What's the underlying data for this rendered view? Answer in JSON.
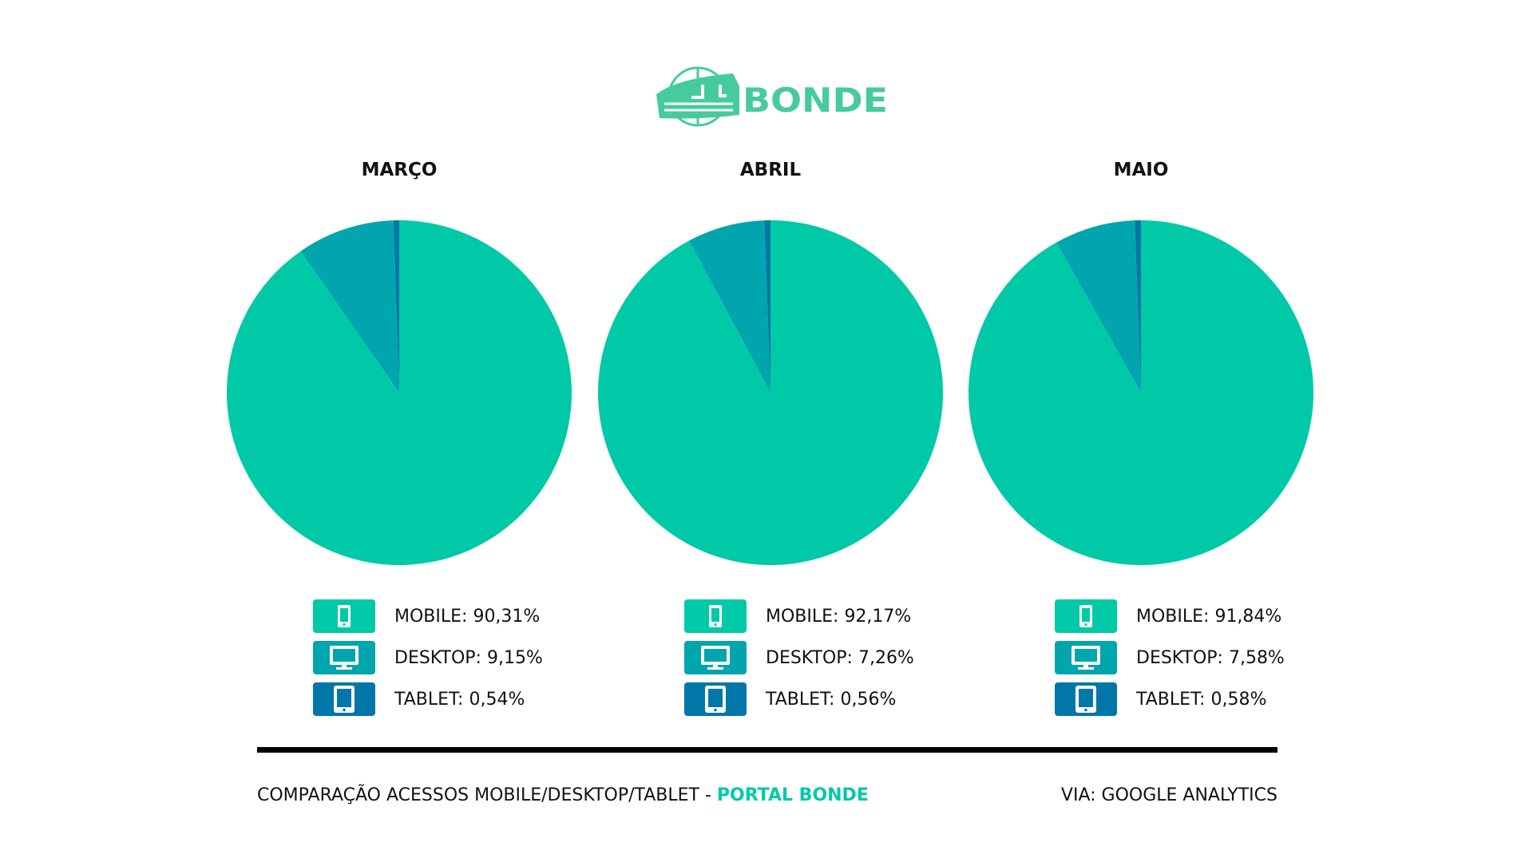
{
  "logo": {
    "text": "BONDE",
    "color": "#45CB9C"
  },
  "colors": {
    "mobile": "#00C9A7",
    "desktop": "#00A5AD",
    "tablet": "#0077A8"
  },
  "chart_data": [
    {
      "type": "pie",
      "title": "MARÇO",
      "categories": [
        "MOBILE",
        "DESKTOP",
        "TABLET"
      ],
      "values": [
        90.31,
        9.15,
        0.54
      ],
      "labels": [
        "MOBILE: 90,31%",
        "DESKTOP: 9,15%",
        "TABLET: 0,54%"
      ]
    },
    {
      "type": "pie",
      "title": "ABRIL",
      "categories": [
        "MOBILE",
        "DESKTOP",
        "TABLET"
      ],
      "values": [
        92.17,
        7.26,
        0.56
      ],
      "labels": [
        "MOBILE: 92,17%",
        "DESKTOP: 7,26%",
        "TABLET: 0,56%"
      ]
    },
    {
      "type": "pie",
      "title": "MAIO",
      "categories": [
        "MOBILE",
        "DESKTOP",
        "TABLET"
      ],
      "values": [
        91.84,
        7.58,
        0.58
      ],
      "labels": [
        "MOBILE: 91,84%",
        "DESKTOP: 7,58%",
        "TABLET: 0,58%"
      ]
    }
  ],
  "footer": {
    "left": "COMPARAÇÃO ACESSOS MOBILE/DESKTOP/TABLET - ",
    "left_accent": "PORTAL BONDE",
    "right": "VIA: GOOGLE ANALYTICS"
  }
}
